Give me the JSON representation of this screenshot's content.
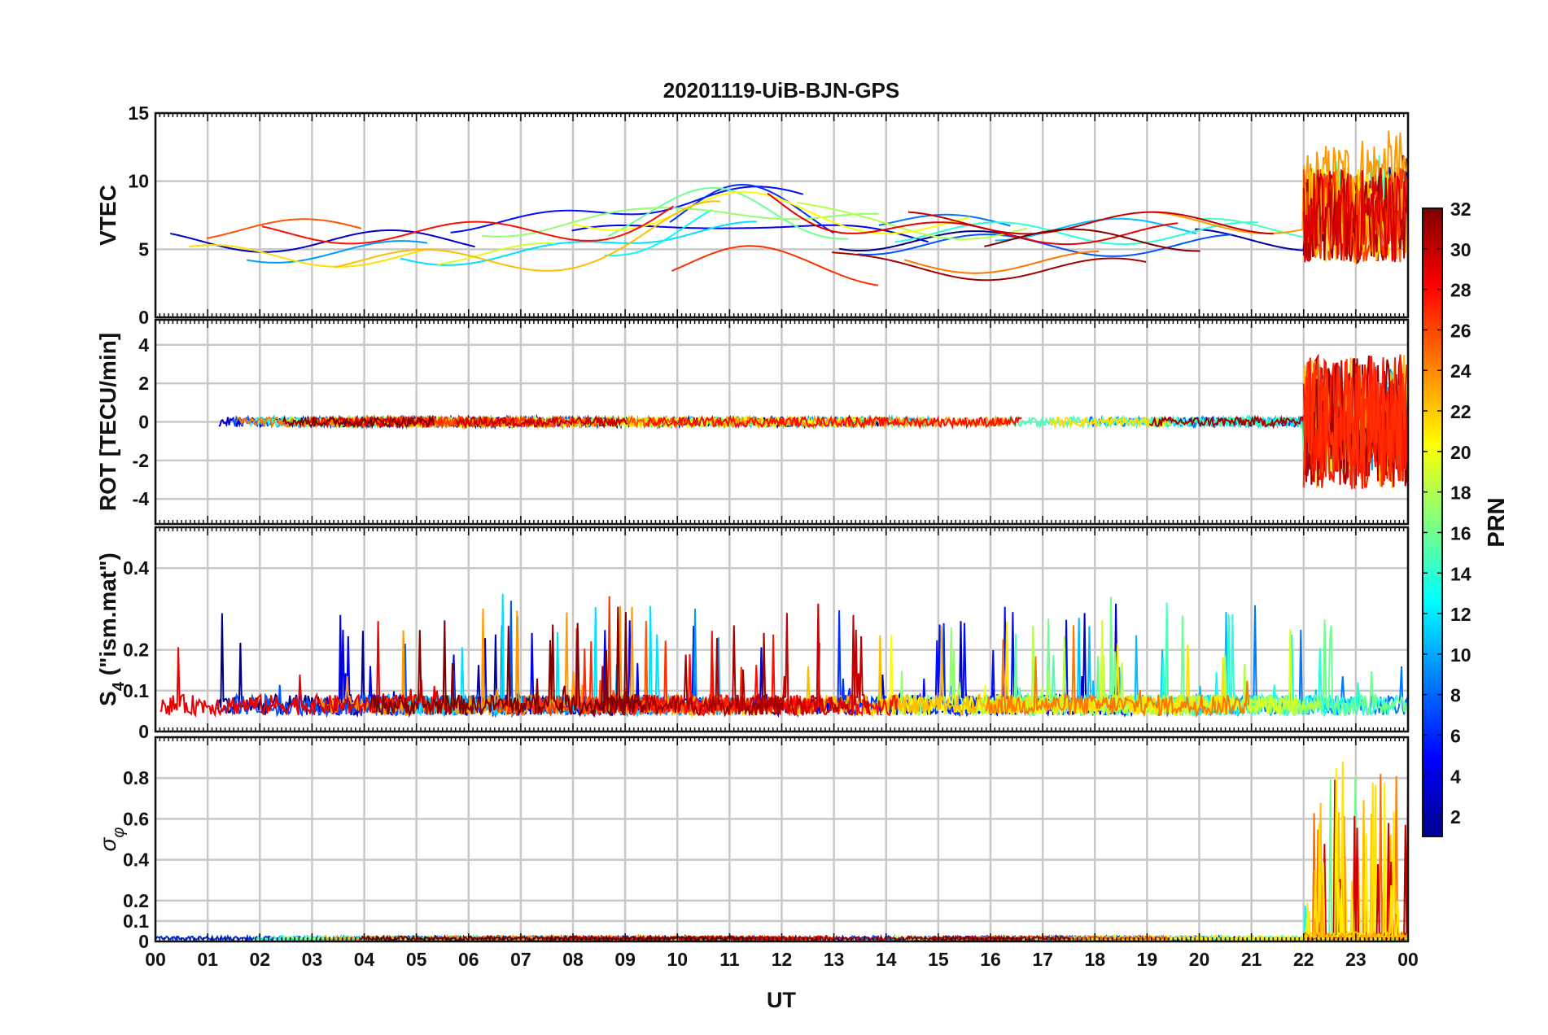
{
  "chart_data": {
    "type": "line",
    "title": "20201119-UiB-BJN-GPS",
    "xlabel": "UT",
    "x_ticks": [
      "00",
      "01",
      "02",
      "03",
      "04",
      "05",
      "06",
      "07",
      "08",
      "09",
      "10",
      "11",
      "12",
      "13",
      "14",
      "15",
      "16",
      "17",
      "18",
      "19",
      "20",
      "21",
      "22",
      "23",
      "00"
    ],
    "xlim_hours": [
      0,
      24
    ],
    "grid": true,
    "colormap": "jet",
    "colorbar": {
      "label": "PRN",
      "range": [
        1,
        32
      ],
      "ticks": [
        "2",
        "4",
        "6",
        "8",
        "10",
        "12",
        "14",
        "16",
        "18",
        "20",
        "22",
        "24",
        "26",
        "28",
        "30",
        "32"
      ],
      "placement": "right"
    },
    "panels": [
      {
        "id": "vtec",
        "ylabel": "VTEC",
        "ylim": [
          0,
          15
        ],
        "y_ticks": [
          "0",
          "5",
          "10",
          "15"
        ],
        "description_values": "VTEC mostly 2-8 TECU through the day, peaking near 10-11 TECU around 10-12 UT; elevated and noisy up to ~12.5 TECU after 22 UT"
      },
      {
        "id": "rot",
        "ylabel": "ROT [TECU/min]",
        "ylim": [
          -5.3,
          5.3
        ],
        "y_ticks": [
          "-4",
          "-2",
          "0",
          "2",
          "4"
        ],
        "description_values": "ROT near 0 +/- 0.5 most of the day; strong fluctuations up to about +/-4 after 22 UT"
      },
      {
        "id": "s4",
        "ylabel": "S4 (\"ism.mat\")",
        "ylabel_main": "S",
        "ylabel_sub": "4",
        "ylabel_rest": " (\"ism.mat\")",
        "ylim": [
          0,
          0.5
        ],
        "y_ticks": [
          "0",
          "0.1",
          "0.2",
          "0.4"
        ],
        "description_values": "S4 baseline 0.03-0.1 with spikes to ~0.3-0.5"
      },
      {
        "id": "sigma",
        "ylabel": "σφ",
        "ylabel_main": "σ",
        "ylabel_sub": "φ",
        "ylim": [
          0,
          1
        ],
        "y_ticks": [
          "0",
          "0.1",
          "0.2",
          "0.4",
          "0.6",
          "0.8"
        ],
        "description_values": "sigma-phi near 0.01-0.03 all day, with spikes up to ~0.8-1.0 between 22 and 24 UT"
      }
    ]
  },
  "colors": {
    "grid": "#c8c8c8",
    "axis": "#111111"
  }
}
